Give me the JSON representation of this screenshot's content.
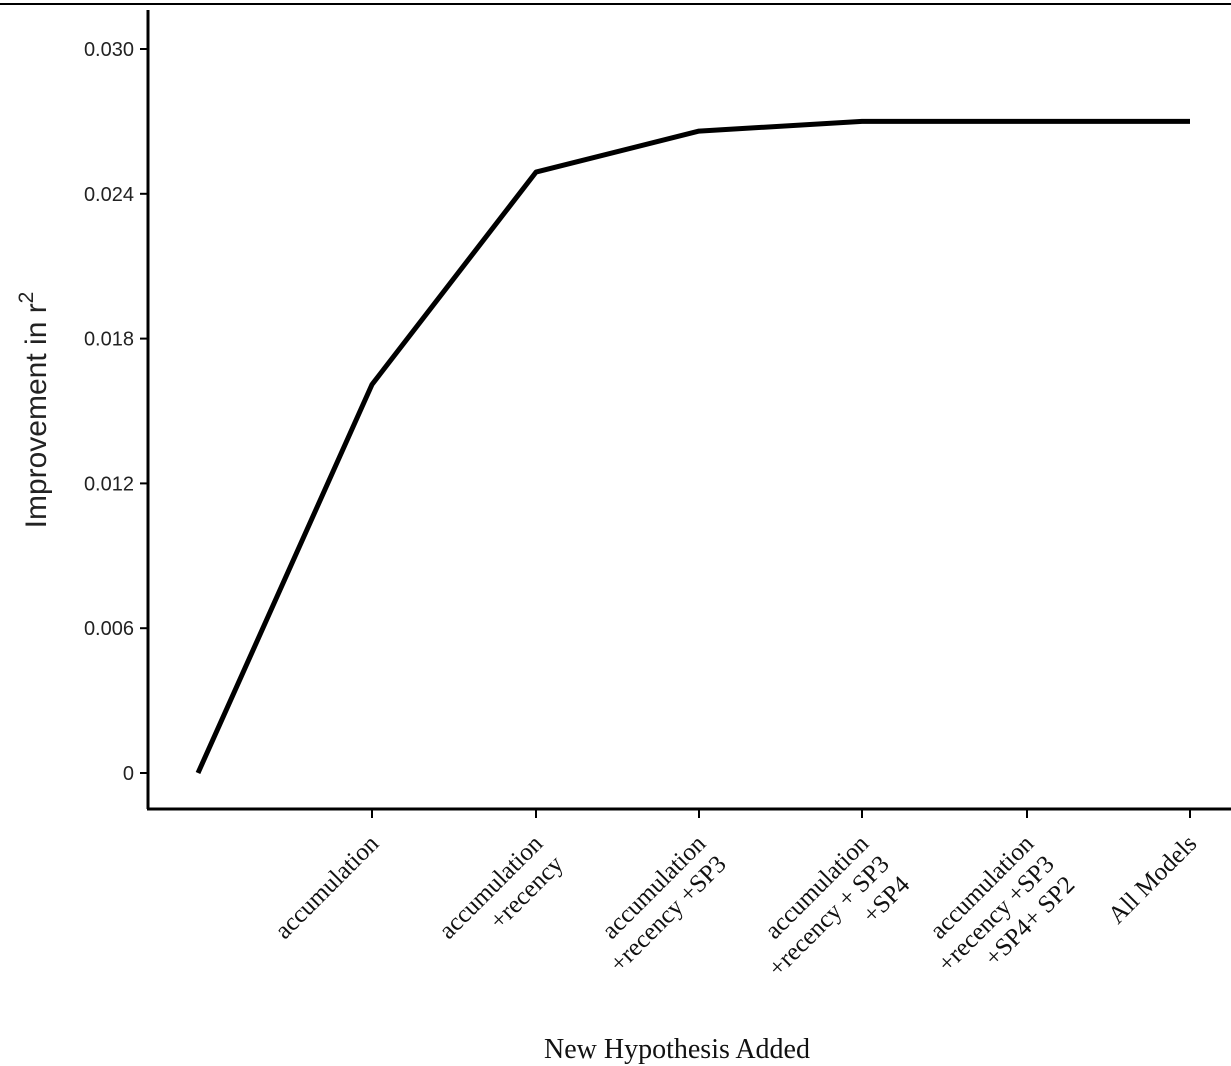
{
  "chart_data": {
    "type": "line",
    "title": "",
    "xlabel": "New Hypothesis Added",
    "ylabel": "Improvement in r",
    "ylabel_superscript": "2",
    "categories": [
      "",
      "accumulation",
      "accumulation\n+recency",
      "accumulation\n+recency +SP3",
      "accumulation\n+recency + SP3\n+SP4",
      "accumulation\n+recency +SP3\n+SP4+ SP2",
      "All Models"
    ],
    "series": [
      {
        "values": [
          0,
          0.0161,
          0.0249,
          0.0266,
          0.027,
          0.027,
          0.027
        ]
      }
    ],
    "ylim": [
      -0.0015,
      0.0316
    ],
    "yticks": [
      0,
      0.006,
      0.012,
      0.018,
      0.024,
      0.03
    ],
    "ytick_labels": [
      "0",
      "0.006",
      "0.012",
      "0.018",
      "0.024",
      "0.030"
    ],
    "grid": false,
    "legend": "none",
    "line_color": "#000000"
  }
}
